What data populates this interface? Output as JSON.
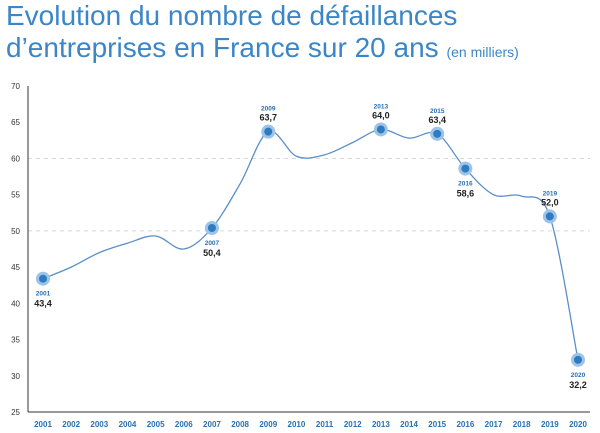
{
  "title": {
    "line1": "Evolution du nombre de défaillances",
    "line2": "d’entreprises en France sur 20 ans",
    "unit": "(en milliers)"
  },
  "colors": {
    "accent": "#3a86c8",
    "line": "#5a8fc8",
    "marker": "#2f7bbf",
    "marker_halo": "#9cc4e8",
    "grid": "#d9d9d9",
    "text": "#222222"
  },
  "chart_data": {
    "type": "line",
    "title": "Evolution du nombre de défaillances d’entreprises en France sur 20 ans (en milliers)",
    "xlabel": "",
    "ylabel": "",
    "ylim": [
      25,
      70
    ],
    "yticks": [
      25,
      30,
      35,
      40,
      45,
      50,
      55,
      60,
      65,
      70
    ],
    "grid": "dashed horizontal at 50 and 60",
    "categories": [
      "2001",
      "2002",
      "2003",
      "2004",
      "2005",
      "2006",
      "2007",
      "2008",
      "2009",
      "2010",
      "2011",
      "2012",
      "2013",
      "2014",
      "2015",
      "2016",
      "2017",
      "2018",
      "2019",
      "2020"
    ],
    "series": [
      {
        "values": [
          43.4,
          45.0,
          47.0,
          48.3,
          49.3,
          47.5,
          50.4,
          56.5,
          63.7,
          60.3,
          60.5,
          62.2,
          64.0,
          62.8,
          63.4,
          58.6,
          55.0,
          54.8,
          52.0,
          32.2
        ]
      }
    ],
    "annotations": [
      {
        "year": "2001",
        "label": "43,4",
        "position": "below"
      },
      {
        "year": "2007",
        "label": "50,4",
        "position": "below"
      },
      {
        "year": "2009",
        "label": "63,7",
        "position": "above"
      },
      {
        "year": "2013",
        "label": "64,0",
        "position": "above"
      },
      {
        "year": "2015",
        "label": "63,4",
        "position": "above"
      },
      {
        "year": "2016",
        "label": "58,6",
        "position": "below"
      },
      {
        "year": "2019",
        "label": "52,0",
        "position": "above"
      },
      {
        "year": "2020",
        "label": "32,2",
        "position": "below"
      }
    ]
  }
}
